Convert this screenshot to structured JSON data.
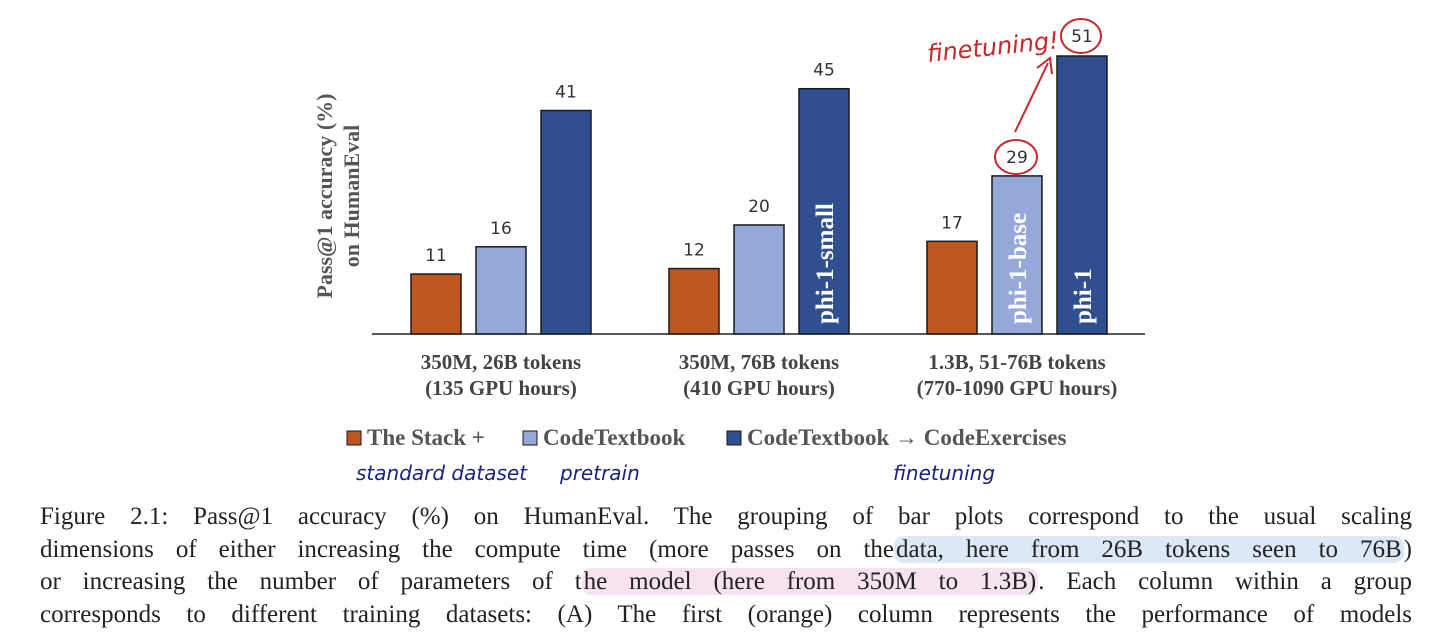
{
  "chart_data": {
    "type": "bar",
    "ylabel_lines": [
      "Pass@1 accuracy (%)",
      "on HumanEval"
    ],
    "categories": [
      [
        "350M, 26B tokens",
        "(135 GPU hours)"
      ],
      [
        "350M, 76B tokens",
        "(410 GPU hours)"
      ],
      [
        "1.3B, 51-76B tokens",
        "(770-1090 GPU hours)"
      ]
    ],
    "series": [
      {
        "name": "The Stack +",
        "color": "#c0561f",
        "values": [
          11,
          12,
          17
        ]
      },
      {
        "name": "CodeTextbook",
        "color": "#94a9d9",
        "values": [
          16,
          20,
          29
        ]
      },
      {
        "name": "CodeTextbook → CodeExercises",
        "color": "#2f4f91",
        "values": [
          41,
          45,
          51
        ]
      }
    ],
    "bar_labels": [
      {
        "group": 1,
        "series": 2,
        "text": "phi-1-small"
      },
      {
        "group": 2,
        "series": 1,
        "text": "phi-1-base"
      },
      {
        "group": 2,
        "series": 2,
        "text": "phi-1"
      }
    ],
    "ylim": [
      0,
      55
    ],
    "grid": false,
    "legend_position": "bottom"
  },
  "annotations": {
    "handwritten_top": "finetuning!",
    "legend_notes": [
      "standard dataset",
      "pretrain",
      "finetuning"
    ],
    "handwriting_color": "#c62828",
    "note_color": "#1a237e"
  },
  "caption": {
    "lines": [
      [
        "Figure 2.1: Pass@1 accuracy (%) on HumanEval.  The grouping of bar plots correspond to the usual scaling"
      ],
      [
        "dimensions of either increasing the compute time (more passes on the",
        "data, here from 26B tokens seen to 76B",
        ")"
      ],
      [
        "or increasing the number of parameters of t",
        "he model (here from 350M to 1.3B)",
        ". Each column within a group"
      ],
      [
        "corresponds to different training datasets: (A) The first (orange) column represents the performance of models"
      ]
    ],
    "highlight_blue": "#dce8f6",
    "highlight_pink": "#f6e3ef"
  }
}
